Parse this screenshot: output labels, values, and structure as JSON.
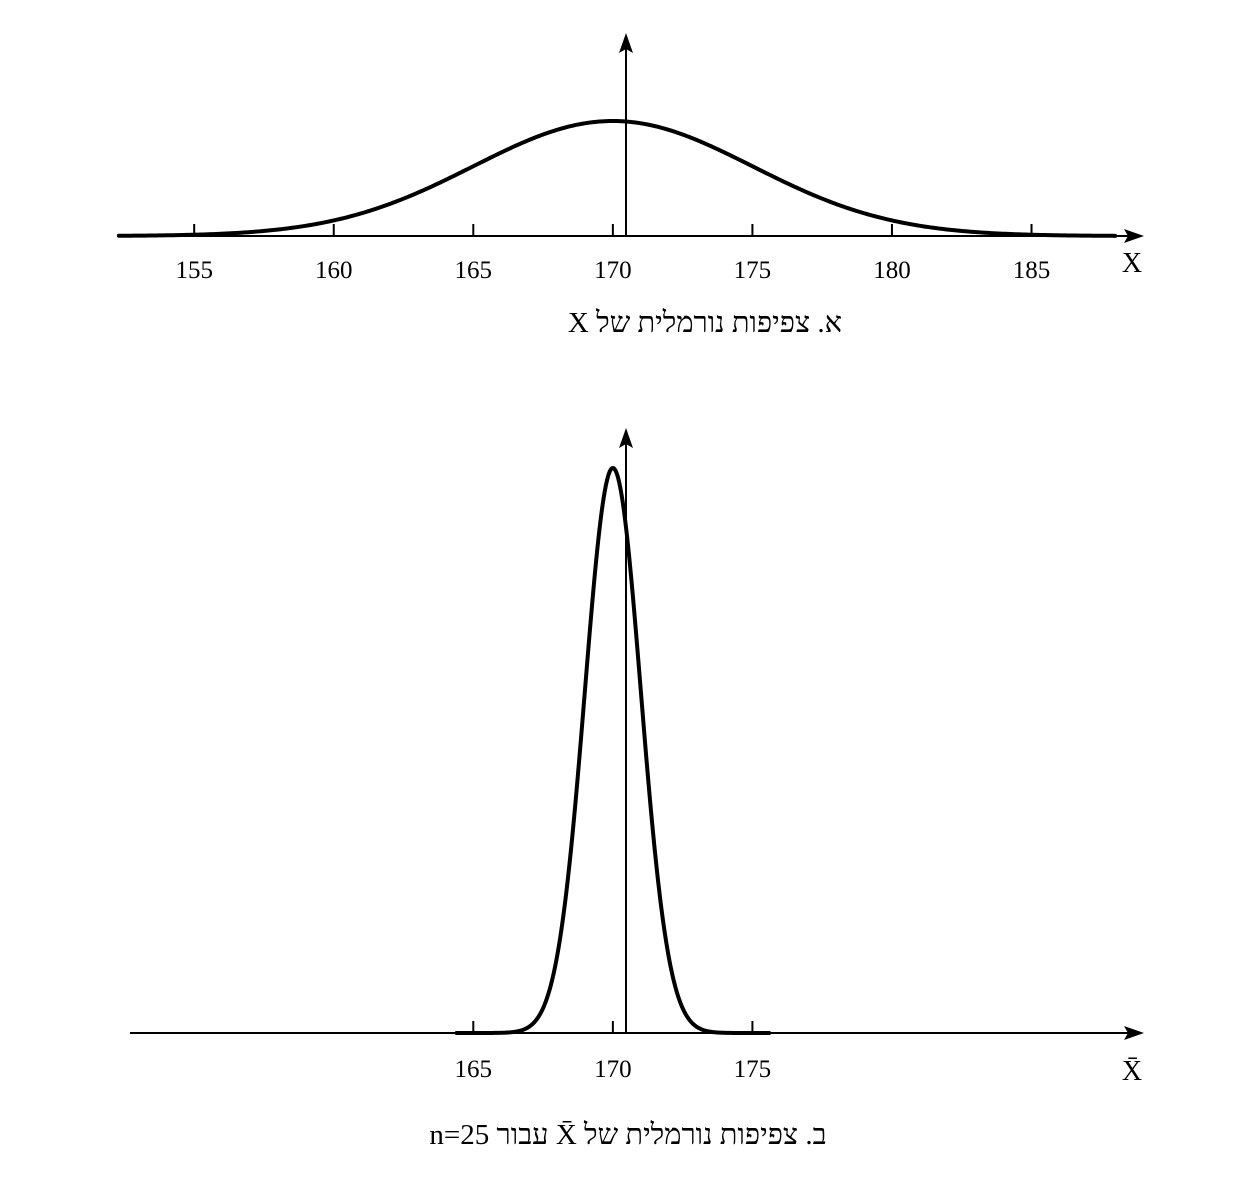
{
  "chart_data": [
    {
      "type": "line",
      "title": "א. צפיפות נורמלית של X",
      "xlabel": "X",
      "ylabel": "",
      "x_ticks": [
        155,
        160,
        165,
        170,
        175,
        180,
        185
      ],
      "xlim": [
        152.7,
        188.6
      ],
      "distribution": {
        "mean": 170,
        "sd": 5
      },
      "x_range": [
        152.3,
        188
      ],
      "grid": false,
      "legend": "none"
    },
    {
      "type": "line",
      "title": "ב. צפיפות נורמלית של X̄ עבור n=25",
      "xlabel": "X̄",
      "ylabel": "",
      "x_ticks": [
        165,
        170,
        175
      ],
      "xlim": [
        152.7,
        188.6
      ],
      "distribution": {
        "mean": 170,
        "sd": 1
      },
      "x_range": [
        164.4,
        175.6
      ],
      "grid": false,
      "legend": "none"
    }
  ]
}
